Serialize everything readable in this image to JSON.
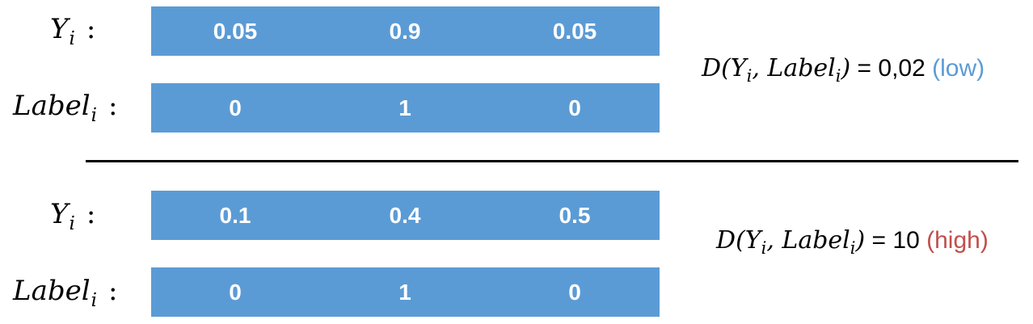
{
  "groups": [
    {
      "y_label": {
        "main": "Y",
        "sub": "i",
        "colon": ":"
      },
      "y_values": [
        "0.05",
        "0.9",
        "0.05"
      ],
      "label_label": {
        "main": "Label",
        "sub": "i",
        "colon": ":"
      },
      "label_values": [
        "0",
        "1",
        "0"
      ],
      "formula": {
        "func": "D",
        "open": "(",
        "arg1_main": "Y",
        "arg1_sub": "i",
        "comma": ", ",
        "arg2_main": "Label",
        "arg2_sub": "i",
        "close": ")",
        "equals": " = ",
        "value": "0,02",
        "qualifier": "(low)",
        "qualifier_color": "#5b9bd5"
      }
    },
    {
      "y_label": {
        "main": "Y",
        "sub": "i",
        "colon": ":"
      },
      "y_values": [
        "0.1",
        "0.4",
        "0.5"
      ],
      "label_label": {
        "main": "Label",
        "sub": "i",
        "colon": ":"
      },
      "label_values": [
        "0",
        "1",
        "0"
      ],
      "formula": {
        "func": "D",
        "open": "(",
        "arg1_main": "Y",
        "arg1_sub": "i",
        "comma": ", ",
        "arg2_main": "Label",
        "arg2_sub": "i",
        "close": ")",
        "equals": " = ",
        "value": "10",
        "qualifier": "(high)",
        "qualifier_color": "#c0504d"
      }
    }
  ],
  "colors": {
    "bar": "#5b9bd5",
    "bar_text": "#ffffff",
    "divider": "#000000"
  }
}
